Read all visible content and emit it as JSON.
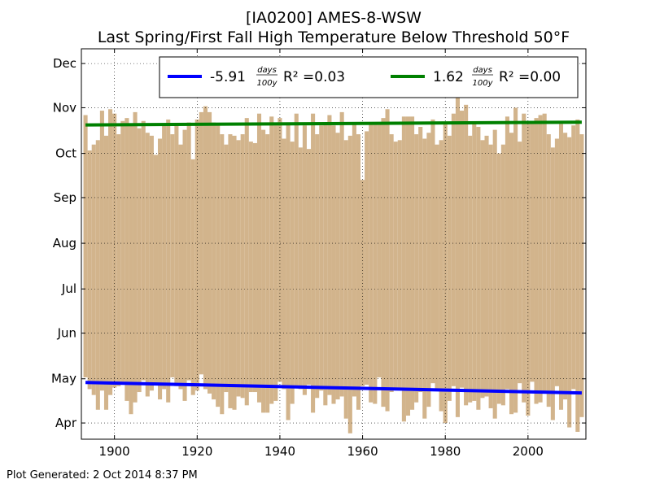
{
  "chart_data": {
    "type": "bar",
    "title": "[IA0200] AMES-8-WSW",
    "subtitle": "Last Spring/First Fall High Temperature Below Threshold 50°F",
    "xlim": [
      1892,
      2014
    ],
    "x_ticks": [
      1900,
      1920,
      1940,
      1960,
      1980,
      2000
    ],
    "y_ticks": [
      {
        "label": "Apr",
        "doy": 105
      },
      {
        "label": "May",
        "doy": 135
      },
      {
        "label": "Jun",
        "doy": 166
      },
      {
        "label": "Jul",
        "doy": 196
      },
      {
        "label": "Aug",
        "doy": 227
      },
      {
        "label": "Sep",
        "doy": 258
      },
      {
        "label": "Oct",
        "doy": 288
      },
      {
        "label": "Nov",
        "doy": 319
      },
      {
        "label": "Dec",
        "doy": 349
      }
    ],
    "ylim_doy": [
      94,
      359
    ],
    "grid": true,
    "legend_position": "top",
    "bar_color": "#d2b48c",
    "years": [
      1893,
      1894,
      1895,
      1896,
      1897,
      1898,
      1899,
      1900,
      1901,
      1902,
      1903,
      1904,
      1905,
      1906,
      1907,
      1908,
      1909,
      1910,
      1911,
      1912,
      1913,
      1914,
      1915,
      1916,
      1917,
      1918,
      1919,
      1920,
      1921,
      1922,
      1923,
      1924,
      1925,
      1926,
      1927,
      1928,
      1929,
      1930,
      1931,
      1932,
      1933,
      1934,
      1935,
      1936,
      1937,
      1938,
      1939,
      1940,
      1941,
      1942,
      1943,
      1944,
      1945,
      1946,
      1947,
      1948,
      1949,
      1950,
      1951,
      1952,
      1953,
      1954,
      1955,
      1956,
      1957,
      1958,
      1959,
      1960,
      1961,
      1962,
      1963,
      1964,
      1965,
      1966,
      1967,
      1968,
      1969,
      1970,
      1971,
      1972,
      1973,
      1974,
      1975,
      1976,
      1977,
      1978,
      1979,
      1980,
      1981,
      1982,
      1983,
      1984,
      1985,
      1986,
      1987,
      1988,
      1989,
      1990,
      1991,
      1992,
      1993,
      1994,
      1995,
      1996,
      1997,
      1998,
      1999,
      2000,
      2001,
      2002,
      2003,
      2004,
      2005,
      2006,
      2007,
      2008,
      2009,
      2010,
      2011,
      2012,
      2013
    ],
    "spring_doy": [
      136,
      128,
      124,
      114,
      127,
      114,
      124,
      129,
      130,
      133,
      120,
      111,
      119,
      126,
      134,
      123,
      127,
      131,
      121,
      128,
      119,
      136,
      130,
      128,
      120,
      134,
      124,
      127,
      138,
      128,
      125,
      121,
      116,
      111,
      126,
      115,
      114,
      123,
      122,
      117,
      126,
      126,
      119,
      112,
      112,
      118,
      120,
      133,
      128,
      107,
      118,
      130,
      128,
      124,
      131,
      112,
      122,
      127,
      117,
      124,
      118,
      121,
      123,
      108,
      98,
      123,
      114,
      130,
      131,
      119,
      118,
      136,
      116,
      113,
      126,
      129,
      129,
      106,
      110,
      114,
      119,
      126,
      108,
      116,
      132,
      127,
      113,
      105,
      120,
      130,
      109,
      129,
      117,
      119,
      120,
      114,
      122,
      123,
      115,
      108,
      118,
      117,
      128,
      111,
      112,
      132,
      119,
      110,
      133,
      118,
      119,
      125,
      116,
      107,
      130,
      114,
      121,
      102,
      128,
      99,
      109
    ],
    "fall_doy": [
      314,
      290,
      294,
      297,
      317,
      300,
      318,
      315,
      301,
      310,
      312,
      307,
      316,
      305,
      310,
      302,
      300,
      287,
      298,
      307,
      311,
      301,
      307,
      294,
      304,
      309,
      284,
      311,
      316,
      320,
      316,
      309,
      307,
      301,
      294,
      301,
      300,
      297,
      301,
      312,
      296,
      295,
      315,
      304,
      301,
      313,
      307,
      312,
      298,
      309,
      296,
      315,
      292,
      307,
      291,
      315,
      301,
      307,
      308,
      314,
      307,
      302,
      316,
      297,
      300,
      308,
      301,
      270,
      303,
      309,
      309,
      309,
      312,
      318,
      301,
      296,
      297,
      313,
      313,
      313,
      301,
      306,
      298,
      302,
      311,
      294,
      297,
      309,
      300,
      315,
      326,
      317,
      321,
      300,
      309,
      306,
      297,
      300,
      294,
      304,
      288,
      294,
      313,
      302,
      319,
      296,
      315,
      308,
      308,
      312,
      314,
      315,
      301,
      292,
      298,
      308,
      302,
      299,
      307,
      311,
      301
    ],
    "series": [
      {
        "name": "-5.91 days/100y R² =0.03",
        "slope_text": "-5.91",
        "r2_text": "R² =0.03",
        "color": "#0000ff",
        "trend_start": [
          1893,
          132.5
        ],
        "trend_end": [
          2013,
          125.4
        ]
      },
      {
        "name": "1.62 days/100y R² =0.00",
        "slope_text": "1.62",
        "r2_text": "R² =0.00",
        "color": "#008000",
        "trend_start": [
          1893,
          307.3
        ],
        "trend_end": [
          2013,
          309.2
        ]
      }
    ],
    "legend_fraction_num": "days",
    "legend_fraction_den": "100y"
  },
  "footer": "Plot Generated: 2 Oct 2014 8:37 PM"
}
